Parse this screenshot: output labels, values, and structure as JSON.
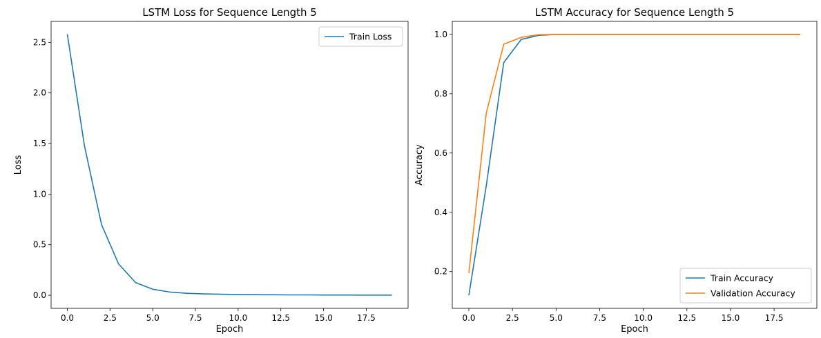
{
  "chart_data": [
    {
      "type": "line",
      "title": "LSTM Loss for Sequence Length 5",
      "xlabel": "Epoch",
      "ylabel": "Loss",
      "xlim": [
        -0.95,
        19.95
      ],
      "ylim": [
        -0.129,
        2.707
      ],
      "xticks": [
        0,
        2.5,
        5,
        7.5,
        10,
        12.5,
        15,
        17.5
      ],
      "xtick_labels": [
        "0.0",
        "2.5",
        "5.0",
        "7.5",
        "10.0",
        "12.5",
        "15.0",
        "17.5"
      ],
      "yticks": [
        0,
        0.5,
        1,
        1.5,
        2,
        2.5
      ],
      "ytick_labels": [
        "0.0",
        "0.5",
        "1.0",
        "1.5",
        "2.0",
        "2.5"
      ],
      "legend_position": "upper right",
      "series": [
        {
          "name": "Train Loss",
          "color": "#1f77b4",
          "x": [
            0,
            1,
            2,
            3,
            4,
            5,
            6,
            7,
            8,
            9,
            10,
            11,
            12,
            13,
            14,
            15,
            16,
            17,
            18,
            19
          ],
          "values": [
            2.58,
            1.48,
            0.7,
            0.31,
            0.125,
            0.06,
            0.032,
            0.02,
            0.014,
            0.01,
            0.008,
            0.006,
            0.005,
            0.004,
            0.004,
            0.003,
            0.003,
            0.002,
            0.002,
            0.002
          ]
        }
      ]
    },
    {
      "type": "line",
      "title": "LSTM Accuracy for Sequence Length 5",
      "xlabel": "Epoch",
      "ylabel": "Accuracy",
      "xlim": [
        -0.95,
        19.95
      ],
      "ylim": [
        0.076,
        1.044
      ],
      "xticks": [
        0,
        2.5,
        5,
        7.5,
        10,
        12.5,
        15,
        17.5
      ],
      "xtick_labels": [
        "0.0",
        "2.5",
        "5.0",
        "7.5",
        "10.0",
        "12.5",
        "15.0",
        "17.5"
      ],
      "yticks": [
        0.2,
        0.4,
        0.6,
        0.8,
        1.0
      ],
      "ytick_labels": [
        "0.2",
        "0.4",
        "0.6",
        "0.8",
        "1.0"
      ],
      "legend_position": "lower right",
      "series": [
        {
          "name": "Train Accuracy",
          "color": "#1f77b4",
          "x": [
            0,
            1,
            2,
            3,
            4,
            5,
            6,
            7,
            8,
            9,
            10,
            11,
            12,
            13,
            14,
            15,
            16,
            17,
            18,
            19
          ],
          "values": [
            0.12,
            0.49,
            0.905,
            0.983,
            0.997,
            1.0,
            1.0,
            1.0,
            1.0,
            1.0,
            1.0,
            1.0,
            1.0,
            1.0,
            1.0,
            1.0,
            1.0,
            1.0,
            1.0,
            1.0
          ]
        },
        {
          "name": "Validation Accuracy",
          "color": "#ff7f0e",
          "x": [
            0,
            1,
            2,
            3,
            4,
            5,
            6,
            7,
            8,
            9,
            10,
            11,
            12,
            13,
            14,
            15,
            16,
            17,
            18,
            19
          ],
          "values": [
            0.195,
            0.735,
            0.967,
            0.99,
            0.999,
            1.0,
            1.0,
            1.0,
            1.0,
            1.0,
            1.0,
            1.0,
            1.0,
            1.0,
            1.0,
            1.0,
            1.0,
            1.0,
            1.0,
            1.0
          ]
        }
      ]
    }
  ]
}
